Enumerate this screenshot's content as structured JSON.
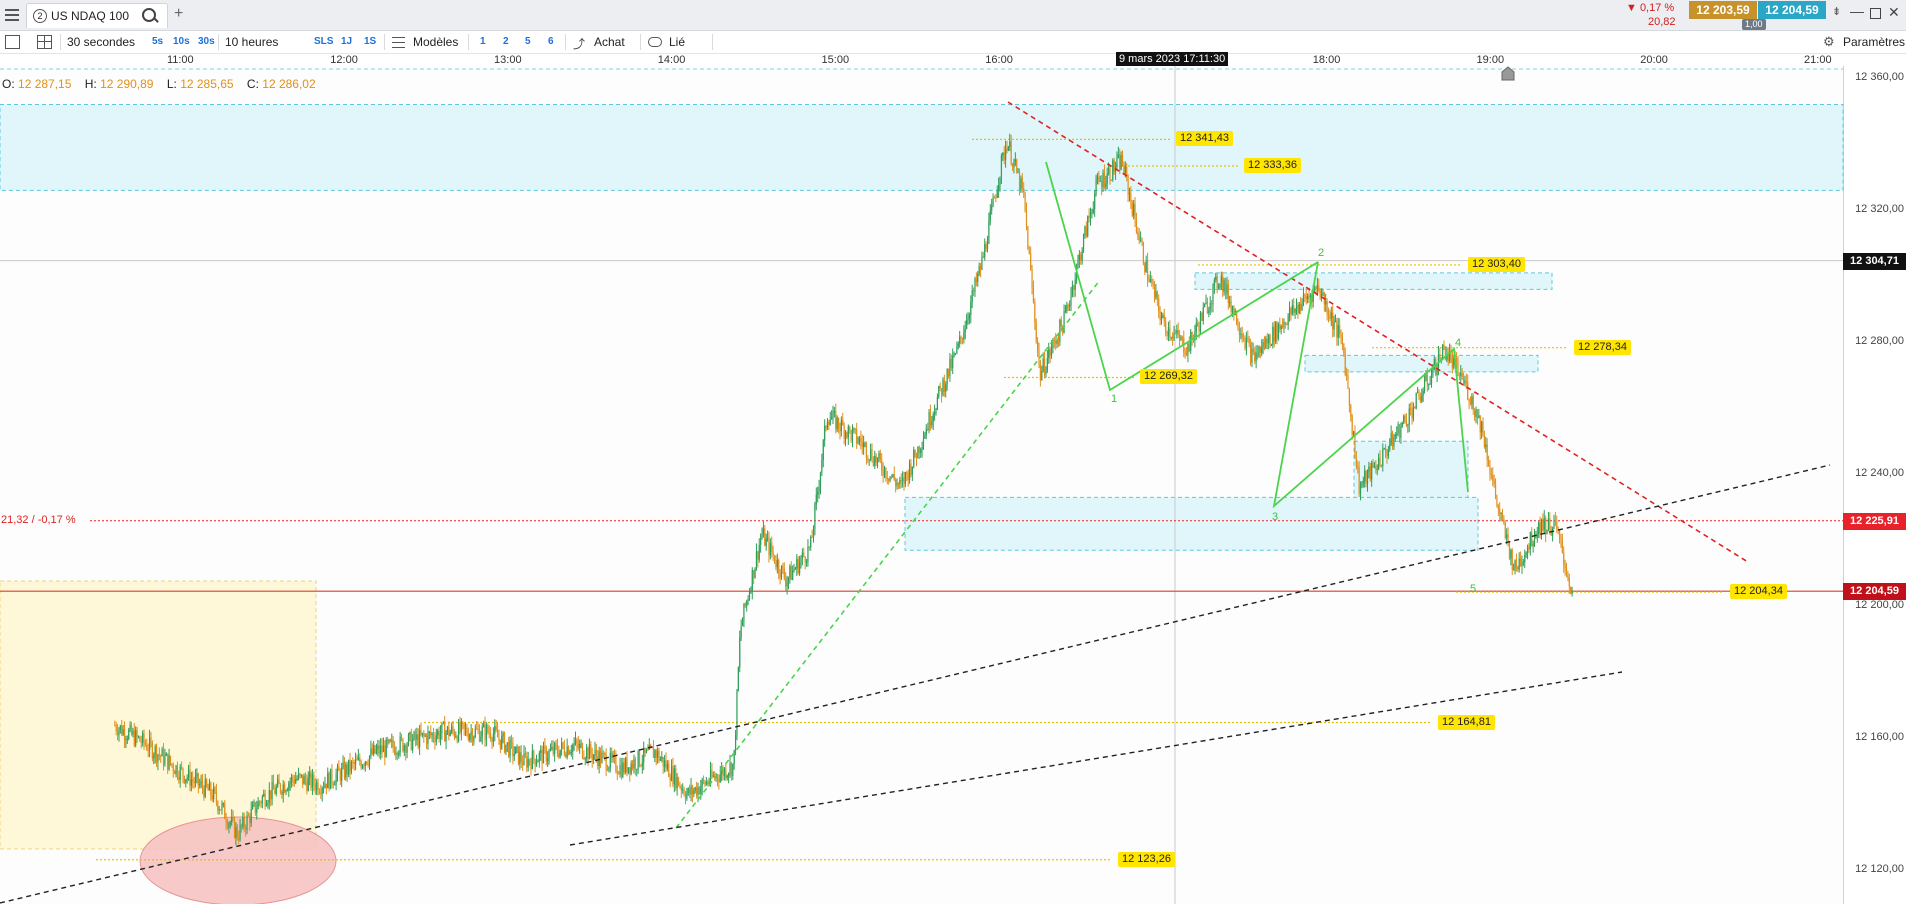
{
  "window": {
    "tab_number": "2",
    "tab_title": "US NDAQ 100",
    "add_tab": "+"
  },
  "quote": {
    "change_pct": "▼ 0,17 %",
    "change_abs": "20,82",
    "bid": "12 203,59",
    "ask": "12 204,59",
    "spread": "1,00",
    "bid_color": "#c8922b",
    "ask_color": "#2aa7c7"
  },
  "toolbar": {
    "interval": "30 secondes",
    "intervals": [
      "5s",
      "10s",
      "30s"
    ],
    "range": "10 heures",
    "ranges": [
      "SLS",
      "1J",
      "1S"
    ],
    "templates": "Modèles",
    "layouts": [
      "1",
      "2",
      "5",
      "6"
    ],
    "buy": "Achat",
    "linked": "Lié",
    "settings": "Paramètres"
  },
  "ohlc": {
    "o_label": "O:",
    "o": "12 287,15",
    "h_label": "H:",
    "h": "12 290,89",
    "l_label": "L:",
    "l": "12 285,65",
    "c_label": "C:",
    "c": "12 286,02"
  },
  "crosshair_date": "9 mars 2023 17:11:30",
  "prev_close_note": "21,32 / -0,17 %",
  "chart_data": {
    "type": "candlestick",
    "instrument": "US NDAQ 100",
    "timeframe": "30 secondes",
    "x_ticks": [
      "11:00",
      "12:00",
      "13:00",
      "14:00",
      "15:00",
      "16:00",
      "17:00",
      "18:00",
      "19:00",
      "20:00",
      "21:00"
    ],
    "y_ticks": [
      "12 360,00",
      "12 320,00",
      "12 280,00",
      "12 240,00",
      "12 200,00",
      "12 160,00",
      "12 120,00"
    ],
    "ylim": [
      12110,
      12363
    ],
    "price_path": [
      [
        10.6,
        12164
      ],
      [
        10.8,
        12158
      ],
      [
        11.0,
        12150
      ],
      [
        11.2,
        12143
      ],
      [
        11.35,
        12131
      ],
      [
        11.5,
        12142
      ],
      [
        11.7,
        12148
      ],
      [
        11.85,
        12146
      ],
      [
        12.0,
        12150
      ],
      [
        12.2,
        12156
      ],
      [
        12.4,
        12159
      ],
      [
        12.6,
        12162
      ],
      [
        12.9,
        12162
      ],
      [
        13.1,
        12153
      ],
      [
        13.4,
        12158
      ],
      [
        13.7,
        12151
      ],
      [
        13.9,
        12156
      ],
      [
        14.1,
        12143
      ],
      [
        14.25,
        12148
      ],
      [
        14.38,
        12152
      ],
      [
        14.42,
        12193
      ],
      [
        14.55,
        12222
      ],
      [
        14.7,
        12208
      ],
      [
        14.85,
        12218
      ],
      [
        14.95,
        12258
      ],
      [
        15.15,
        12250
      ],
      [
        15.4,
        12236
      ],
      [
        15.5,
        12247
      ],
      [
        15.6,
        12260
      ],
      [
        15.75,
        12278
      ],
      [
        15.9,
        12305
      ],
      [
        16.0,
        12331
      ],
      [
        16.05,
        12341
      ],
      [
        16.15,
        12324
      ],
      [
        16.25,
        12270
      ],
      [
        16.4,
        12287
      ],
      [
        16.6,
        12328
      ],
      [
        16.75,
        12335
      ],
      [
        16.9,
        12302
      ],
      [
        17.0,
        12286
      ],
      [
        17.15,
        12278
      ],
      [
        17.35,
        12300
      ],
      [
        17.55,
        12275
      ],
      [
        17.75,
        12287
      ],
      [
        17.95,
        12297
      ],
      [
        18.1,
        12279
      ],
      [
        18.2,
        12236
      ],
      [
        18.35,
        12246
      ],
      [
        18.55,
        12262
      ],
      [
        18.72,
        12278
      ],
      [
        18.85,
        12267
      ],
      [
        18.95,
        12254
      ],
      [
        19.05,
        12229
      ],
      [
        19.15,
        12211
      ],
      [
        19.3,
        12225
      ],
      [
        19.4,
        12224
      ],
      [
        19.5,
        12204
      ]
    ],
    "levels": [
      {
        "label": "12 341,43",
        "value": 12341.43
      },
      {
        "label": "12 333,36",
        "value": 12333.36
      },
      {
        "label": "12 303,40",
        "value": 12303.4
      },
      {
        "label": "12 278,34",
        "value": 12278.34
      },
      {
        "label": "12 269,32",
        "value": 12269.32
      },
      {
        "label": "12 204,34",
        "value": 12204.34
      },
      {
        "label": "12 164,81",
        "value": 12164.81
      },
      {
        "label": "12 123,26",
        "value": 12123.26
      }
    ],
    "axis_markers": [
      {
        "label": "12 304,71",
        "value": 12304.71,
        "color": "#111111"
      },
      {
        "label": "12 225,91",
        "value": 12225.91,
        "color": "#e8222a"
      },
      {
        "label": "12 204,59",
        "value": 12204.59,
        "color": "#c0101a"
      }
    ],
    "wave_labels": [
      "1",
      "2",
      "3",
      "4",
      "5"
    ],
    "colors": {
      "up": "#2e9e58",
      "down": "#e0901c",
      "level": "#e6c200",
      "zone": "#e0f6fb",
      "trend_red": "#e02020",
      "trend_green": "#4bd44b",
      "trend_black": "#222222"
    }
  }
}
